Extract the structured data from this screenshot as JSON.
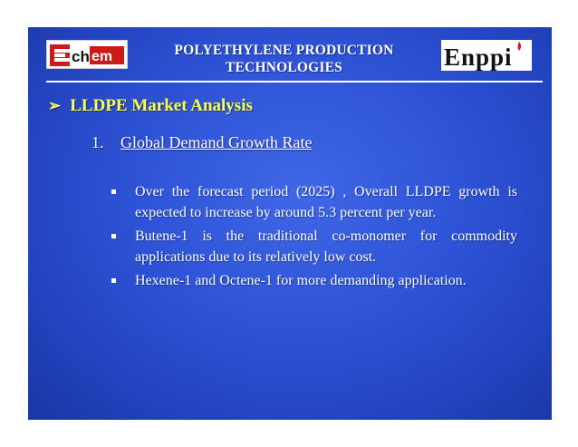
{
  "header": {
    "title_line1": "POLYETHYLENE PRODUCTION",
    "title_line2": "TECHNOLOGIES",
    "logo_left_text": "Echem",
    "logo_right_text": "Enppi"
  },
  "section": {
    "arrow": "➢",
    "title": "LLDPE Market Analysis"
  },
  "subsection": {
    "number": "1.",
    "title": "Global Demand Growth Rate"
  },
  "bullets": [
    "Over the forecast period (2025) , Overall LLDPE growth is expected to increase by around 5.3 percent per year.",
    "Butene-1 is the traditional co-monomer for commodity applications due to its relatively low cost.",
    "Hexene-1 and Octene-1 for more demanding application."
  ],
  "colors": {
    "background": "#2f54d8",
    "section_title": "#ffff4d",
    "text": "#ffffff"
  }
}
